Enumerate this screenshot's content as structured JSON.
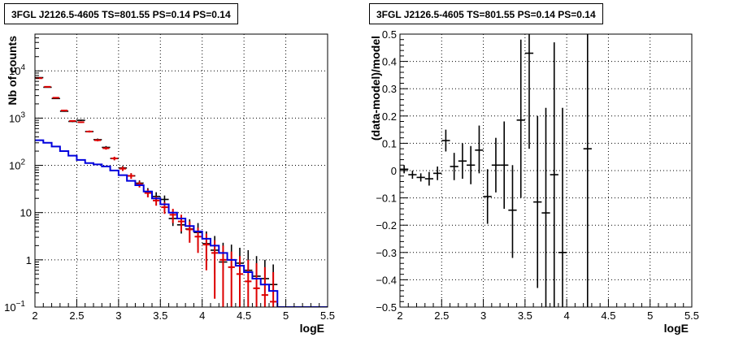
{
  "chart_data": [
    {
      "type": "step",
      "title": "3FGL J2126.5-4605 TS=801.55 PS=0.14 PS=0.14",
      "xlabel": "logE",
      "ylabel": "Nb of counts",
      "xlim": [
        2,
        5.5
      ],
      "ylim": [
        0.1,
        60000
      ],
      "yscale": "log",
      "grid": true,
      "x_ticks": [
        "2",
        "2.5",
        "3",
        "3.5",
        "4",
        "4.5",
        "5",
        "5.5"
      ],
      "y_ticks": [
        {
          "value": 0.1,
          "label": "10",
          "exp": "−1"
        },
        {
          "value": 1,
          "label": "1",
          "exp": ""
        },
        {
          "value": 10,
          "label": "10",
          "exp": ""
        },
        {
          "value": 100,
          "label": "10",
          "exp": "2"
        },
        {
          "value": 1000,
          "label": "10",
          "exp": "3"
        },
        {
          "value": 10000,
          "label": "10",
          "exp": "4"
        }
      ],
      "bin_edges": [
        2.0,
        2.1,
        2.2,
        2.3,
        2.4,
        2.5,
        2.6,
        2.7,
        2.8,
        2.9,
        3.0,
        3.1,
        3.2,
        3.3,
        3.4,
        3.5,
        3.6,
        3.7,
        3.8,
        3.9,
        4.0,
        4.1,
        4.2,
        4.3,
        4.4,
        4.5,
        4.6,
        4.7,
        4.8,
        4.9,
        5.0,
        5.1,
        5.2,
        5.3,
        5.4,
        5.5
      ],
      "series": [
        {
          "kind": "data_points",
          "color": "#000000",
          "x": [
            2.05,
            2.15,
            2.25,
            2.35,
            2.45,
            2.55,
            2.65,
            2.75,
            2.85,
            2.95,
            3.05,
            3.15,
            3.25,
            3.35,
            3.45,
            3.55,
            3.65,
            3.75,
            3.85,
            3.95,
            4.05,
            4.15,
            4.25,
            4.35,
            4.45,
            4.55,
            4.65,
            4.75,
            4.85
          ],
          "y": [
            7200,
            4500,
            2600,
            1400,
            850,
            900,
            520,
            350,
            240,
            140,
            88,
            60,
            42,
            28,
            22,
            19,
            7.5,
            5.5,
            4.5,
            3.8,
            2.2,
            1.6,
            0.9,
            1.0,
            0.85,
            0.6,
            0.45,
            0.4,
            0.3
          ],
          "yerr_low": [
            7100,
            4430,
            2549,
            1363,
            821,
            870,
            497,
            331,
            224,
            128,
            79,
            52,
            36,
            23,
            17,
            15,
            5.2,
            3.6,
            2.7,
            1.9,
            0.7,
            0.5,
            0.6,
            0.6,
            0.5,
            0.5,
            0.4,
            0.3,
            0.2
          ],
          "yerr_high": [
            7300,
            4570,
            2651,
            1437,
            879,
            930,
            543,
            369,
            256,
            152,
            97,
            68,
            48,
            33,
            27,
            23,
            10.5,
            8.0,
            7.2,
            6.0,
            4.0,
            3.2,
            2.3,
            2.1,
            1.8,
            1.6,
            1.2,
            1.0,
            0.8
          ]
        },
        {
          "kind": "model_points",
          "color": "#dd0000",
          "x": [
            2.05,
            2.15,
            2.25,
            2.35,
            2.45,
            2.55,
            2.65,
            2.75,
            2.85,
            2.95,
            3.05,
            3.15,
            3.25,
            3.35,
            3.45,
            3.55,
            3.65,
            3.75,
            3.85,
            3.95,
            4.05,
            4.15,
            4.25,
            4.35,
            4.45,
            4.55,
            4.65,
            4.75,
            4.85
          ],
          "y": [
            7000,
            4600,
            2700,
            1450,
            870,
            820,
            520,
            340,
            230,
            140,
            85,
            60,
            40,
            26,
            18,
            13,
            9,
            6.5,
            4.4,
            3.1,
            2.1,
            1.4,
            1.0,
            0.7,
            0.5,
            0.35,
            0.25,
            0.18,
            0.13
          ],
          "yerr_low": [
            6916,
            4532,
            2648,
            1412,
            840,
            791,
            497,
            322,
            215,
            128,
            76,
            52,
            34,
            21,
            14,
            9.4,
            6.0,
            4.0,
            2.3,
            1.4,
            0.6,
            0.15,
            0.01,
            0.01,
            0.01,
            0.01,
            0.01,
            0.01,
            0.01
          ],
          "yerr_high": [
            7084,
            4668,
            2752,
            1488,
            900,
            849,
            543,
            358,
            245,
            152,
            94,
            68,
            46,
            31,
            22,
            16.6,
            12.0,
            9.0,
            6.5,
            4.8,
            3.6,
            2.6,
            2.0,
            1.5,
            1.2,
            1.0,
            0.85,
            0.7,
            0.55
          ]
        },
        {
          "kind": "model_histogram",
          "color": "#0000dd",
          "values": [
            340,
            300,
            250,
            200,
            160,
            130,
            112,
            105,
            95,
            78,
            62,
            47,
            38,
            28,
            20,
            15,
            10,
            7.5,
            5.2,
            4.0,
            2.8,
            2.0,
            1.4,
            1.0,
            0.75,
            0.55,
            0.4,
            0.3,
            0.22,
            0.1,
            0.1,
            0.1,
            0.1,
            0.1,
            0.1
          ]
        }
      ]
    },
    {
      "type": "scatter",
      "title": "3FGL J2126.5-4605 TS=801.55 PS=0.14 PS=0.14",
      "xlabel": "logE",
      "ylabel": "(data-model)/model",
      "xlim": [
        2,
        5.5
      ],
      "ylim": [
        -0.5,
        0.5
      ],
      "grid": true,
      "x_ticks": [
        "2",
        "2.5",
        "3",
        "3.5",
        "4",
        "4.5",
        "5",
        "5.5"
      ],
      "y_ticks": [
        {
          "value": -0.5,
          "label": "−0.5"
        },
        {
          "value": -0.4,
          "label": "−0.4"
        },
        {
          "value": -0.3,
          "label": "−0.3"
        },
        {
          "value": -0.2,
          "label": "−0.2"
        },
        {
          "value": -0.1,
          "label": "−0.1"
        },
        {
          "value": 0,
          "label": "0"
        },
        {
          "value": 0.1,
          "label": "0.1"
        },
        {
          "value": 0.2,
          "label": "0.2"
        },
        {
          "value": 0.3,
          "label": "0.3"
        },
        {
          "value": 0.4,
          "label": "0.4"
        },
        {
          "value": 0.5,
          "label": "0.5"
        }
      ],
      "series": [
        {
          "kind": "residuals",
          "color": "#000000",
          "x": [
            2.05,
            2.15,
            2.25,
            2.35,
            2.45,
            2.55,
            2.65,
            2.75,
            2.85,
            2.95,
            3.05,
            3.15,
            3.25,
            3.35,
            3.45,
            3.55,
            3.65,
            3.75,
            3.85,
            3.95,
            4.25
          ],
          "y": [
            0.005,
            -0.015,
            -0.025,
            -0.03,
            -0.01,
            0.11,
            0.015,
            0.035,
            0.02,
            0.075,
            -0.095,
            0.02,
            0.02,
            -0.145,
            0.185,
            0.43,
            -0.115,
            -0.155,
            -0.015,
            -0.3,
            0.08
          ],
          "yerr_low": [
            -0.01,
            -0.03,
            -0.04,
            -0.055,
            -0.035,
            0.07,
            -0.035,
            -0.03,
            -0.05,
            -0.01,
            -0.195,
            -0.08,
            -0.14,
            -0.32,
            -0.1,
            0.08,
            -0.43,
            -0.6,
            -0.6,
            -0.6,
            -0.6
          ],
          "yerr_high": [
            0.02,
            0.0,
            -0.01,
            -0.005,
            0.015,
            0.15,
            0.065,
            0.1,
            0.09,
            0.165,
            0.005,
            0.12,
            0.18,
            0.02,
            0.48,
            0.6,
            0.2,
            0.23,
            0.47,
            0.23,
            0.6
          ]
        }
      ]
    }
  ]
}
